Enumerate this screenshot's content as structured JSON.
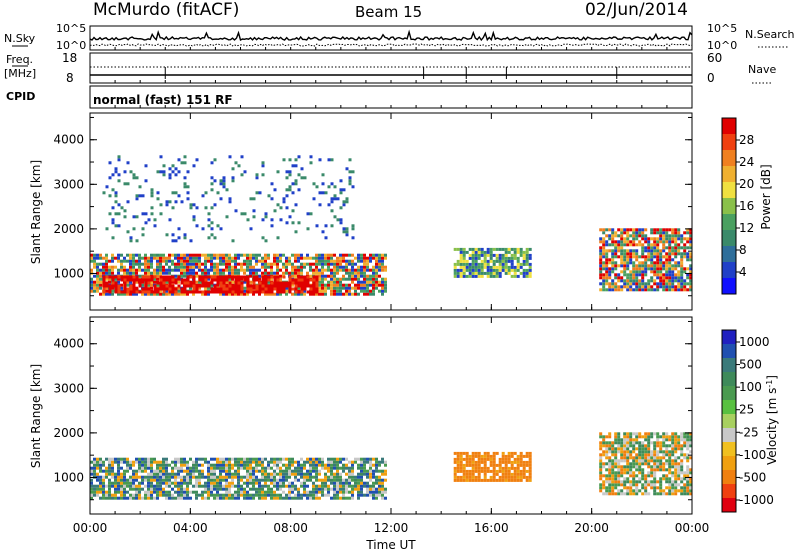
{
  "header": {
    "station": "McMurdo (fitACF)",
    "beam": "Beam 15",
    "date": "02/Jun/2014"
  },
  "noise_panel": {
    "left_label": "N.Sky",
    "right_label": "N.Search",
    "left_ticks": [
      "10^5",
      "10^0"
    ],
    "right_ticks": [
      "10^5",
      "10^0"
    ]
  },
  "freq_panel": {
    "left_label_1": "Freq.",
    "left_label_2": "[MHz]",
    "right_label": "Nave",
    "left_ticks": [
      "18",
      "8"
    ],
    "right_ticks": [
      "60",
      "0"
    ],
    "cpid_label": "CPID",
    "mode_text": "normal (fast) 151 RF"
  },
  "chart_data": [
    {
      "type": "heatmap",
      "name": "power",
      "ylabel": "Slant Range [km]",
      "yticks": [
        "1000",
        "2000",
        "3000",
        "4000"
      ],
      "ylim": [
        180,
        4600
      ],
      "colorbar": {
        "label": "Power [dB]",
        "ticks": [
          "4",
          "8",
          "12",
          "16",
          "20",
          "24",
          "28"
        ],
        "range": [
          0,
          32
        ]
      },
      "regions": [
        {
          "t0": 0.0,
          "t1": 11.8,
          "r0": 500,
          "r1": 1400,
          "level": "mid-high"
        },
        {
          "t0": 0.5,
          "t1": 9.0,
          "r0": 550,
          "r1": 900,
          "level": "high"
        },
        {
          "t0": 14.5,
          "t1": 17.5,
          "r0": 900,
          "r1": 1550,
          "level": "mid"
        },
        {
          "t0": 20.3,
          "t1": 24.0,
          "r0": 600,
          "r1": 2000,
          "level": "mid-high"
        },
        {
          "t0": 0.5,
          "t1": 10.5,
          "r0": 1700,
          "r1": 3600,
          "level": "low"
        }
      ]
    },
    {
      "type": "heatmap",
      "name": "velocity",
      "ylabel": "Slant Range [km]",
      "xlabel": "Time UT",
      "xticks": [
        "00:00",
        "04:00",
        "08:00",
        "12:00",
        "16:00",
        "20:00",
        "00:00"
      ],
      "yticks": [
        "1000",
        "2000",
        "3000",
        "4000"
      ],
      "ylim": [
        180,
        4600
      ],
      "colorbar": {
        "label": "Velocity [m s",
        "label_sup": "-1",
        "label_end": "]",
        "ticks": [
          "1000",
          "500",
          "100",
          "25",
          "-25",
          "-100",
          "-500",
          "-1000"
        ]
      },
      "regions": [
        {
          "t0": 0.0,
          "t1": 11.8,
          "r0": 500,
          "r1": 1400,
          "level": "green-mixed"
        },
        {
          "t0": 14.5,
          "t1": 17.5,
          "r0": 900,
          "r1": 1550,
          "level": "orange"
        },
        {
          "t0": 20.3,
          "t1": 24.0,
          "r0": 600,
          "r1": 2000,
          "level": "orange-green"
        }
      ]
    }
  ],
  "x_axis": {
    "ticks": [
      "00:00",
      "04:00",
      "08:00",
      "12:00",
      "16:00",
      "20:00",
      "00:00"
    ],
    "label": "Time UT"
  }
}
